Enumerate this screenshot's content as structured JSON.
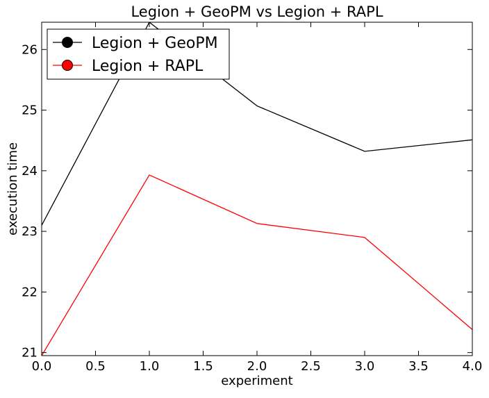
{
  "chart_data": {
    "type": "line",
    "title": "Legion + GeoPM vs Legion + RAPL",
    "xlabel": "experiment",
    "ylabel": "execution time",
    "xlim": [
      0,
      4
    ],
    "ylim": [
      20.95,
      26.45
    ],
    "xticks": [
      0,
      0.5,
      1,
      1.5,
      2,
      2.5,
      3,
      3.5,
      4
    ],
    "xtick_labels": [
      "0.0",
      "0.5",
      "1.0",
      "1.5",
      "2.0",
      "2.5",
      "3.0",
      "3.5",
      "4.0"
    ],
    "yticks": [
      21,
      22,
      23,
      24,
      25,
      26
    ],
    "ytick_labels": [
      "21",
      "22",
      "23",
      "24",
      "25",
      "26"
    ],
    "grid": false,
    "legend_position": "top-left",
    "series": [
      {
        "name": "Legion + GeoPM",
        "color": "#000000",
        "x": [
          0,
          1,
          2,
          3,
          4
        ],
        "y": [
          23.1,
          26.45,
          25.07,
          24.32,
          24.51
        ]
      },
      {
        "name": "Legion + RAPL",
        "color": "#ff0000",
        "x": [
          0,
          1,
          2,
          3,
          4
        ],
        "y": [
          20.95,
          23.93,
          23.13,
          22.9,
          21.38
        ]
      }
    ]
  }
}
